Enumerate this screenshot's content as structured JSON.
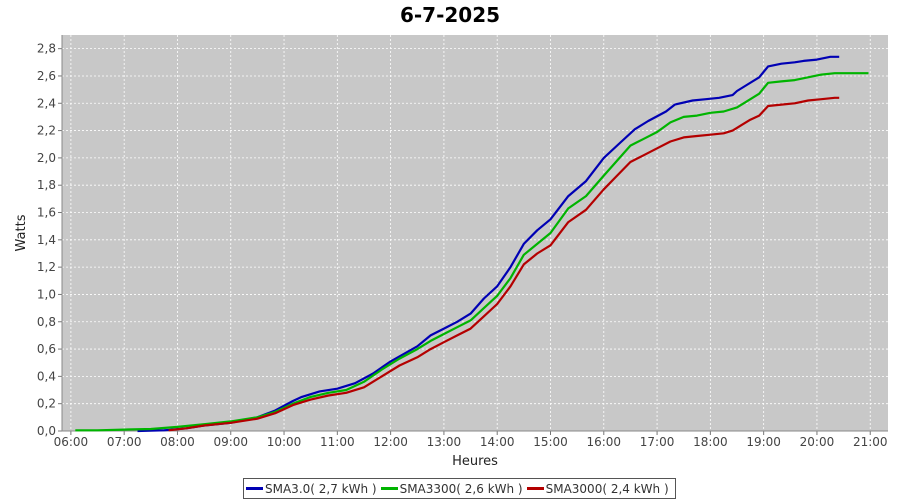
{
  "chart_data": {
    "type": "line",
    "title": "6-7-2025",
    "xlabel": "Heures",
    "ylabel": "Watts",
    "xlim": [
      "05:50",
      "21:20"
    ],
    "ylim": [
      0,
      2.9
    ],
    "x_ticks": [
      "06:00",
      "07:00",
      "08:00",
      "09:00",
      "10:00",
      "11:00",
      "12:00",
      "13:00",
      "14:00",
      "15:00",
      "16:00",
      "17:00",
      "18:00",
      "19:00",
      "20:00",
      "21:00"
    ],
    "y_ticks": [
      "0,0",
      "0,2",
      "0,4",
      "0,6",
      "0,8",
      "1,0",
      "1,2",
      "1,4",
      "1,6",
      "1,8",
      "2,0",
      "2,2",
      "2,4",
      "2,6",
      "2,8"
    ],
    "grid": true,
    "legend_position": "bottom",
    "series": [
      {
        "name": "SMA3.0( 2,7 kWh )",
        "color": "#0000b4",
        "points": [
          [
            "07:15",
            0.0
          ],
          [
            "07:45",
            0.005
          ],
          [
            "08:10",
            0.02
          ],
          [
            "08:30",
            0.04
          ],
          [
            "09:00",
            0.06
          ],
          [
            "09:30",
            0.1
          ],
          [
            "09:50",
            0.15
          ],
          [
            "10:10",
            0.22
          ],
          [
            "10:20",
            0.25
          ],
          [
            "10:40",
            0.29
          ],
          [
            "11:00",
            0.31
          ],
          [
            "11:20",
            0.35
          ],
          [
            "11:40",
            0.42
          ],
          [
            "12:00",
            0.51
          ],
          [
            "12:30",
            0.62
          ],
          [
            "12:45",
            0.7
          ],
          [
            "13:00",
            0.75
          ],
          [
            "13:15",
            0.8
          ],
          [
            "13:30",
            0.86
          ],
          [
            "13:45",
            0.97
          ],
          [
            "14:00",
            1.06
          ],
          [
            "14:15",
            1.2
          ],
          [
            "14:30",
            1.37
          ],
          [
            "14:45",
            1.47
          ],
          [
            "15:00",
            1.55
          ],
          [
            "15:20",
            1.72
          ],
          [
            "15:40",
            1.83
          ],
          [
            "16:00",
            2.0
          ],
          [
            "16:20",
            2.12
          ],
          [
            "16:35",
            2.21
          ],
          [
            "16:50",
            2.27
          ],
          [
            "17:10",
            2.34
          ],
          [
            "17:20",
            2.39
          ],
          [
            "17:40",
            2.42
          ],
          [
            "17:55",
            2.43
          ],
          [
            "18:10",
            2.44
          ],
          [
            "18:25",
            2.46
          ],
          [
            "18:30",
            2.49
          ],
          [
            "18:40",
            2.53
          ],
          [
            "18:55",
            2.59
          ],
          [
            "19:05",
            2.67
          ],
          [
            "19:20",
            2.69
          ],
          [
            "19:35",
            2.7
          ],
          [
            "19:45",
            2.71
          ],
          [
            "20:00",
            2.72
          ],
          [
            "20:15",
            2.74
          ],
          [
            "20:25",
            2.74
          ]
        ]
      },
      {
        "name": "SMA3300( 2,6 kWh )",
        "color": "#00b400",
        "points": [
          [
            "06:05",
            0.005
          ],
          [
            "06:30",
            0.005
          ],
          [
            "07:00",
            0.01
          ],
          [
            "07:30",
            0.015
          ],
          [
            "08:00",
            0.03
          ],
          [
            "08:30",
            0.05
          ],
          [
            "09:00",
            0.07
          ],
          [
            "09:30",
            0.1
          ],
          [
            "09:50",
            0.14
          ],
          [
            "10:10",
            0.2
          ],
          [
            "10:30",
            0.25
          ],
          [
            "10:50",
            0.28
          ],
          [
            "11:10",
            0.3
          ],
          [
            "11:30",
            0.36
          ],
          [
            "11:50",
            0.45
          ],
          [
            "12:10",
            0.53
          ],
          [
            "12:30",
            0.6
          ],
          [
            "12:45",
            0.66
          ],
          [
            "13:00",
            0.71
          ],
          [
            "13:15",
            0.76
          ],
          [
            "13:30",
            0.81
          ],
          [
            "13:45",
            0.9
          ],
          [
            "14:00",
            0.99
          ],
          [
            "14:15",
            1.12
          ],
          [
            "14:30",
            1.29
          ],
          [
            "14:45",
            1.37
          ],
          [
            "15:00",
            1.45
          ],
          [
            "15:20",
            1.63
          ],
          [
            "15:40",
            1.72
          ],
          [
            "16:00",
            1.87
          ],
          [
            "16:15",
            1.98
          ],
          [
            "16:30",
            2.09
          ],
          [
            "16:45",
            2.14
          ],
          [
            "17:00",
            2.19
          ],
          [
            "17:15",
            2.26
          ],
          [
            "17:30",
            2.3
          ],
          [
            "17:45",
            2.31
          ],
          [
            "18:00",
            2.33
          ],
          [
            "18:15",
            2.34
          ],
          [
            "18:30",
            2.37
          ],
          [
            "18:40",
            2.41
          ],
          [
            "18:55",
            2.47
          ],
          [
            "19:05",
            2.55
          ],
          [
            "19:20",
            2.56
          ],
          [
            "19:35",
            2.57
          ],
          [
            "19:50",
            2.59
          ],
          [
            "20:05",
            2.61
          ],
          [
            "20:20",
            2.62
          ],
          [
            "20:50",
            2.62
          ],
          [
            "20:58",
            2.62
          ]
        ]
      },
      {
        "name": "SMA3000( 2,4 kWh )",
        "color": "#b40000",
        "points": [
          [
            "07:50",
            0.005
          ],
          [
            "08:10",
            0.02
          ],
          [
            "08:30",
            0.04
          ],
          [
            "09:00",
            0.06
          ],
          [
            "09:30",
            0.09
          ],
          [
            "09:50",
            0.13
          ],
          [
            "10:10",
            0.19
          ],
          [
            "10:30",
            0.23
          ],
          [
            "10:50",
            0.26
          ],
          [
            "11:10",
            0.28
          ],
          [
            "11:30",
            0.32
          ],
          [
            "11:50",
            0.4
          ],
          [
            "12:10",
            0.48
          ],
          [
            "12:30",
            0.54
          ],
          [
            "12:45",
            0.6
          ],
          [
            "13:00",
            0.65
          ],
          [
            "13:15",
            0.7
          ],
          [
            "13:30",
            0.75
          ],
          [
            "13:45",
            0.84
          ],
          [
            "14:00",
            0.93
          ],
          [
            "14:15",
            1.06
          ],
          [
            "14:30",
            1.22
          ],
          [
            "14:45",
            1.3
          ],
          [
            "15:00",
            1.36
          ],
          [
            "15:20",
            1.53
          ],
          [
            "15:40",
            1.62
          ],
          [
            "16:00",
            1.77
          ],
          [
            "16:15",
            1.87
          ],
          [
            "16:30",
            1.97
          ],
          [
            "16:45",
            2.02
          ],
          [
            "17:00",
            2.07
          ],
          [
            "17:15",
            2.12
          ],
          [
            "17:30",
            2.15
          ],
          [
            "17:45",
            2.16
          ],
          [
            "18:00",
            2.17
          ],
          [
            "18:15",
            2.18
          ],
          [
            "18:25",
            2.2
          ],
          [
            "18:35",
            2.24
          ],
          [
            "18:45",
            2.28
          ],
          [
            "18:55",
            2.31
          ],
          [
            "19:05",
            2.38
          ],
          [
            "19:20",
            2.39
          ],
          [
            "19:35",
            2.4
          ],
          [
            "19:50",
            2.42
          ],
          [
            "20:05",
            2.43
          ],
          [
            "20:20",
            2.44
          ],
          [
            "20:25",
            2.44
          ]
        ]
      }
    ]
  }
}
